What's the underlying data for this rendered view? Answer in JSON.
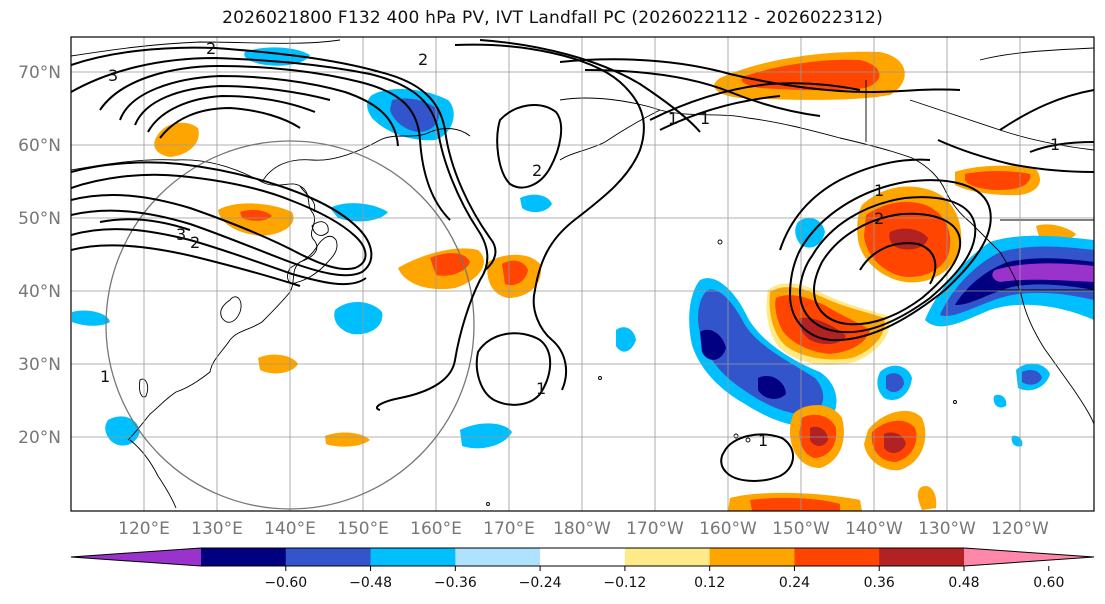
{
  "title": "2026021800 F132 400 hPa PV, IVT Landfall PC (2026022112 - 2026022312)",
  "lat_labels": [
    "70°N",
    "60°N",
    "50°N",
    "40°N",
    "30°N",
    "20°N"
  ],
  "lon_labels": [
    "120°E",
    "130°E",
    "140°E",
    "150°E",
    "160°E",
    "170°E",
    "180°W",
    "170°W",
    "160°W",
    "150°W",
    "140°W",
    "130°W",
    "120°W"
  ],
  "colorbar": {
    "colors": [
      "#9933cc",
      "#000080",
      "#3355cc",
      "#00bfff",
      "#aee2ff",
      "#ffffff",
      "#ffea88",
      "#ffa500",
      "#ff4500",
      "#b22222",
      "#ff88aa"
    ],
    "ticks": [
      "−0.60",
      "−0.48",
      "−0.36",
      "−0.24",
      "−0.12",
      "0.12",
      "0.24",
      "0.36",
      "0.48",
      "0.60"
    ]
  },
  "contour_labels": [
    "3",
    "2",
    "2",
    "3",
    "2",
    "1",
    "2",
    "1",
    "1",
    "1",
    "2",
    "1",
    "1",
    "1"
  ]
}
